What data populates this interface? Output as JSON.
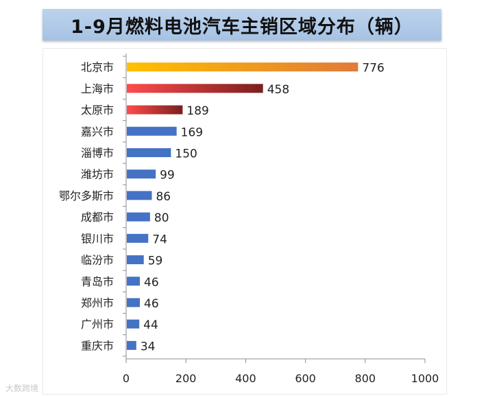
{
  "chart_data": {
    "type": "bar",
    "orientation": "horizontal",
    "title": "1-9月燃料电池汽车主销区域分布（辆）",
    "categories": [
      "北京市",
      "上海市",
      "太原市",
      "嘉兴市",
      "淄博市",
      "潍坊市",
      "鄂尔多斯市",
      "成都市",
      "银川市",
      "临汾市",
      "青岛市",
      "郑州市",
      "广州市",
      "重庆市"
    ],
    "values": [
      776,
      458,
      189,
      169,
      150,
      99,
      86,
      80,
      74,
      59,
      46,
      46,
      44,
      34
    ],
    "xlim": [
      0,
      1000
    ],
    "xticks": [
      "0",
      "200",
      "400",
      "600",
      "800",
      "1000"
    ],
    "grid": false,
    "legend": "none",
    "colors": {
      "default_bar": "#4472c4",
      "bar_1": [
        "#ffc000",
        "#e07a3a"
      ],
      "bar_2": [
        "#ff4b4b",
        "#7a1f1f"
      ],
      "bar_3": [
        "#ff4b4b",
        "#7a1f1f"
      ]
    }
  },
  "watermark": "大数跨境"
}
